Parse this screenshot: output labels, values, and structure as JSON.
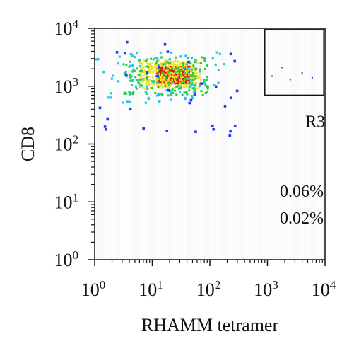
{
  "chart_data": {
    "type": "scatter",
    "subtype": "flow-cytometry-density",
    "title": "",
    "xlabel": "RHAMM tetramer",
    "ylabel": "CD8",
    "xscale": "log",
    "yscale": "log",
    "xlim": [
      1,
      10000
    ],
    "ylim": [
      1,
      10000
    ],
    "x_ticks": [
      {
        "value": 1,
        "base": "10",
        "exp": "0"
      },
      {
        "value": 10,
        "base": "10",
        "exp": "1"
      },
      {
        "value": 100,
        "base": "10",
        "exp": "2"
      },
      {
        "value": 1000,
        "base": "10",
        "exp": "3"
      },
      {
        "value": 10000,
        "base": "10",
        "exp": "4"
      }
    ],
    "y_ticks": [
      {
        "value": 1,
        "base": "10",
        "exp": "0"
      },
      {
        "value": 10,
        "base": "10",
        "exp": "1"
      },
      {
        "value": 100,
        "base": "10",
        "exp": "2"
      },
      {
        "value": 1000,
        "base": "10",
        "exp": "3"
      },
      {
        "value": 10000,
        "base": "10",
        "exp": "4"
      }
    ],
    "gates": [
      {
        "name": "R3",
        "x_range": [
          900,
          9500
        ],
        "y_range": [
          700,
          9500
        ]
      }
    ],
    "annotations": [
      "0.06%",
      "0.02%"
    ],
    "density_clusters": [
      {
        "level": "peak",
        "x": [
          12,
          45
        ],
        "y": [
          1100,
          2200
        ],
        "color": "#d81e05"
      },
      {
        "level": "high",
        "x": [
          6,
          70
        ],
        "y": [
          900,
          2800
        ],
        "color": "#f0e020"
      },
      {
        "level": "mid-high",
        "x": [
          3,
          100
        ],
        "y": [
          700,
          3200
        ],
        "color": "#27c94a"
      },
      {
        "level": "mid",
        "x": [
          1.05,
          180
        ],
        "y": [
          500,
          4000
        ],
        "color": "#21c7e8"
      },
      {
        "level": "low",
        "x": [
          1.05,
          450
        ],
        "y": [
          140,
          6500
        ],
        "color": "#1e3cf0"
      }
    ],
    "gate_events": [
      [
        1200,
        1500
      ],
      [
        2500,
        1300
      ],
      [
        1800,
        2100
      ],
      [
        4000,
        1700
      ],
      [
        6000,
        1400
      ]
    ],
    "colorscale": [
      "#1e3cf0",
      "#21c7e8",
      "#27c94a",
      "#f0e020",
      "#f39019",
      "#d81e05"
    ]
  }
}
